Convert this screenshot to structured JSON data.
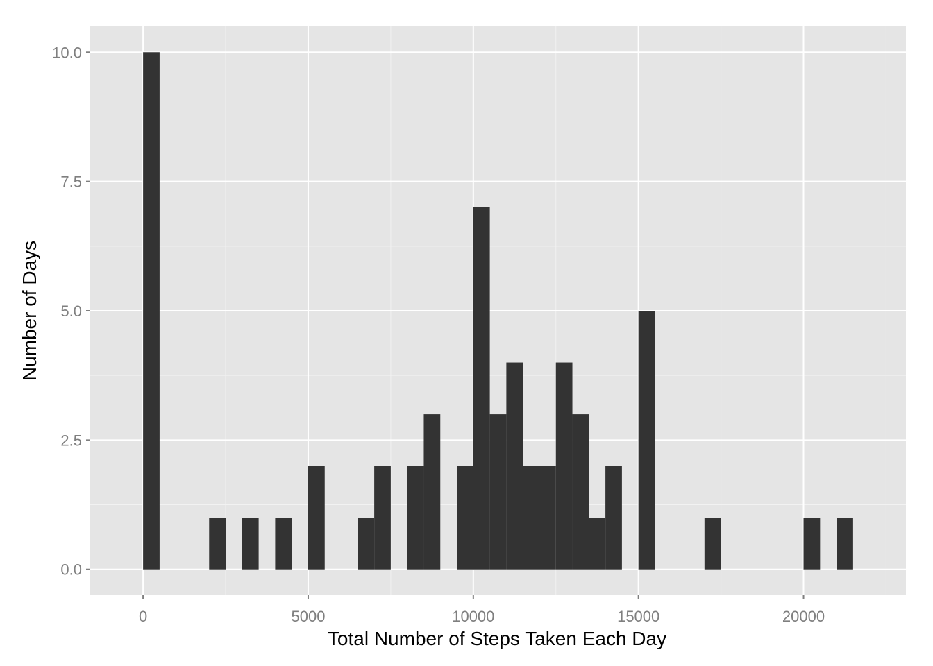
{
  "chart_data": {
    "type": "bar",
    "subtype": "histogram",
    "title": "",
    "xlabel": "Total Number of Steps Taken Each Day",
    "ylabel": "Number of Days",
    "bin_width": 500,
    "bins": [
      {
        "x": 0,
        "count": 10
      },
      {
        "x": 2000,
        "count": 1
      },
      {
        "x": 3000,
        "count": 1
      },
      {
        "x": 4000,
        "count": 1
      },
      {
        "x": 5000,
        "count": 2
      },
      {
        "x": 6500,
        "count": 1
      },
      {
        "x": 7000,
        "count": 2
      },
      {
        "x": 8000,
        "count": 2
      },
      {
        "x": 8500,
        "count": 3
      },
      {
        "x": 9500,
        "count": 2
      },
      {
        "x": 10000,
        "count": 7
      },
      {
        "x": 10500,
        "count": 3
      },
      {
        "x": 11000,
        "count": 4
      },
      {
        "x": 11500,
        "count": 2
      },
      {
        "x": 12000,
        "count": 2
      },
      {
        "x": 12500,
        "count": 4
      },
      {
        "x": 13000,
        "count": 3
      },
      {
        "x": 13500,
        "count": 1
      },
      {
        "x": 14000,
        "count": 2
      },
      {
        "x": 15000,
        "count": 5
      },
      {
        "x": 17000,
        "count": 1
      },
      {
        "x": 20000,
        "count": 1
      },
      {
        "x": 21000,
        "count": 1
      }
    ],
    "xlim": [
      -1600,
      23100
    ],
    "ylim": [
      -0.5,
      10.5
    ],
    "xticks": [
      0,
      5000,
      10000,
      15000,
      20000
    ],
    "xtick_labels": [
      "0",
      "5000",
      "10000",
      "15000",
      "20000"
    ],
    "yticks": [
      0,
      2.5,
      5,
      7.5,
      10
    ],
    "ytick_labels": [
      "0.0",
      "2.5",
      "5.0",
      "7.5",
      "10.0"
    ],
    "grid": true,
    "colors": {
      "bar": "#333333",
      "panel": "#e5e5e5",
      "grid_major": "#ffffff",
      "grid_minor": "#f2f2f2",
      "tick_text": "#7f7f7f"
    }
  }
}
